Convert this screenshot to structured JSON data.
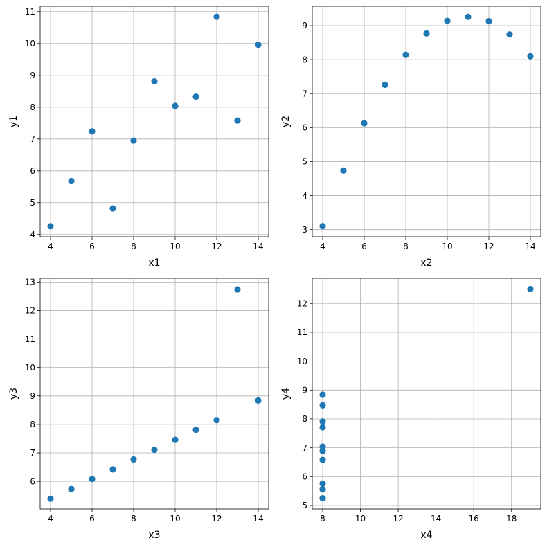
{
  "chart_data": [
    {
      "type": "scatter",
      "xlabel": "x1",
      "ylabel": "y1",
      "color": "#1f77b4",
      "grid": true,
      "xlim": [
        3.5,
        14.5
      ],
      "ylim": [
        3.93,
        11.17
      ],
      "xticks": [
        4,
        6,
        8,
        10,
        12,
        14
      ],
      "yticks": [
        4,
        5,
        6,
        7,
        8,
        9,
        10,
        11
      ],
      "x": [
        10,
        8,
        13,
        9,
        11,
        14,
        6,
        4,
        12,
        7,
        5
      ],
      "y": [
        8.04,
        6.95,
        7.58,
        8.81,
        8.33,
        9.96,
        7.24,
        4.26,
        10.84,
        4.82,
        5.68
      ]
    },
    {
      "type": "scatter",
      "xlabel": "x2",
      "ylabel": "y2",
      "color": "#1f77b4",
      "grid": true,
      "xlim": [
        3.5,
        14.5
      ],
      "ylim": [
        2.79,
        9.57
      ],
      "xticks": [
        4,
        6,
        8,
        10,
        12,
        14
      ],
      "yticks": [
        3,
        4,
        5,
        6,
        7,
        8,
        9
      ],
      "x": [
        10,
        8,
        13,
        9,
        11,
        14,
        6,
        4,
        12,
        7,
        5
      ],
      "y": [
        9.14,
        8.14,
        8.74,
        8.77,
        9.26,
        8.1,
        6.13,
        3.1,
        9.13,
        7.26,
        4.74
      ]
    },
    {
      "type": "scatter",
      "xlabel": "x3",
      "ylabel": "y3",
      "color": "#1f77b4",
      "grid": true,
      "xlim": [
        3.5,
        14.5
      ],
      "ylim": [
        5.03,
        13.13
      ],
      "xticks": [
        4,
        6,
        8,
        10,
        12,
        14
      ],
      "yticks": [
        6,
        7,
        8,
        9,
        10,
        11,
        12,
        13
      ],
      "x": [
        10,
        8,
        13,
        9,
        11,
        14,
        6,
        4,
        12,
        7,
        5
      ],
      "y": [
        7.46,
        6.77,
        12.74,
        7.11,
        7.81,
        8.84,
        6.08,
        5.39,
        8.15,
        6.42,
        5.73
      ]
    },
    {
      "type": "scatter",
      "xlabel": "x4",
      "ylabel": "y4",
      "color": "#1f77b4",
      "grid": true,
      "xlim": [
        7.45,
        19.55
      ],
      "ylim": [
        4.88,
        12.87
      ],
      "xticks": [
        8,
        10,
        12,
        14,
        16,
        18
      ],
      "yticks": [
        5,
        6,
        7,
        8,
        9,
        10,
        11,
        12
      ],
      "x": [
        8,
        8,
        8,
        8,
        8,
        8,
        8,
        19,
        8,
        8,
        8
      ],
      "y": [
        6.58,
        5.76,
        7.71,
        8.84,
        8.47,
        7.04,
        5.25,
        12.5,
        5.56,
        7.91,
        6.89
      ]
    }
  ]
}
